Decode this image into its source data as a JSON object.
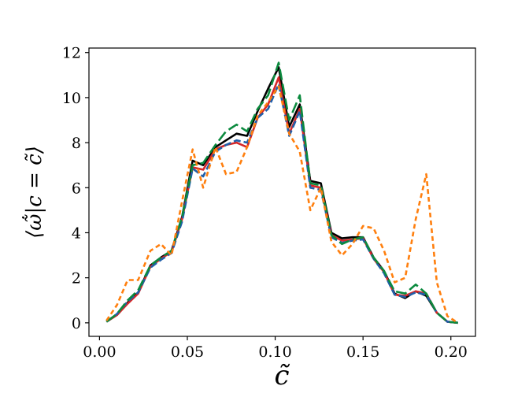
{
  "chart_data": {
    "type": "line",
    "xlabel": "c̃",
    "ylabel": "⟨ω̃̇|c = c̃⟩",
    "xlim": [
      -0.006,
      0.214
    ],
    "ylim": [
      -0.6,
      12.2
    ],
    "xticks": [
      0.0,
      0.05,
      0.1,
      0.15,
      0.2
    ],
    "xtick_labels": [
      "0.00",
      "0.05",
      "0.10",
      "0.15",
      "0.20"
    ],
    "yticks": [
      0,
      2,
      4,
      6,
      8,
      10,
      12
    ],
    "ytick_labels": [
      "0",
      "2",
      "4",
      "6",
      "8",
      "10",
      "12"
    ],
    "grid": false,
    "legend": "none",
    "series": [
      {
        "color": "#000000",
        "dash": "solid",
        "x": [
          0.004,
          0.01,
          0.016,
          0.022,
          0.029,
          0.035,
          0.041,
          0.047,
          0.053,
          0.059,
          0.066,
          0.072,
          0.078,
          0.084,
          0.09,
          0.096,
          0.102,
          0.108,
          0.114,
          0.12,
          0.126,
          0.132,
          0.138,
          0.144,
          0.15,
          0.156,
          0.162,
          0.168,
          0.174,
          0.18,
          0.186,
          0.192,
          0.198,
          0.204
        ],
        "y": [
          0.05,
          0.35,
          0.9,
          1.35,
          2.55,
          2.9,
          3.2,
          4.7,
          7.2,
          7.0,
          7.8,
          8.1,
          8.4,
          8.3,
          9.4,
          10.4,
          11.35,
          8.7,
          9.7,
          6.3,
          6.2,
          4.0,
          3.75,
          3.8,
          3.8,
          2.9,
          2.3,
          1.3,
          1.1,
          1.4,
          1.2,
          0.45,
          0.05,
          0.0
        ]
      },
      {
        "color": "#d62728",
        "dash": "solid",
        "x": [
          0.004,
          0.01,
          0.016,
          0.022,
          0.029,
          0.035,
          0.041,
          0.047,
          0.053,
          0.059,
          0.066,
          0.072,
          0.078,
          0.084,
          0.09,
          0.096,
          0.102,
          0.108,
          0.114,
          0.12,
          0.126,
          0.132,
          0.138,
          0.144,
          0.15,
          0.156,
          0.162,
          0.168,
          0.174,
          0.18,
          0.186,
          0.192,
          0.198,
          0.204
        ],
        "y": [
          0.05,
          0.35,
          0.85,
          1.3,
          2.5,
          2.85,
          3.15,
          4.6,
          6.9,
          6.8,
          7.7,
          7.9,
          8.0,
          7.8,
          9.1,
          9.7,
          10.9,
          8.4,
          9.5,
          6.1,
          6.0,
          3.9,
          3.65,
          3.7,
          3.75,
          2.85,
          2.25,
          1.25,
          1.2,
          1.4,
          1.3,
          0.45,
          0.05,
          0.0
        ]
      },
      {
        "color": "#1f5faa",
        "dash": "dash",
        "x": [
          0.004,
          0.01,
          0.016,
          0.022,
          0.029,
          0.035,
          0.041,
          0.047,
          0.053,
          0.059,
          0.066,
          0.072,
          0.078,
          0.084,
          0.09,
          0.096,
          0.102,
          0.108,
          0.114,
          0.12,
          0.126,
          0.132,
          0.138,
          0.144,
          0.15,
          0.156,
          0.162,
          0.168,
          0.174,
          0.18,
          0.186,
          0.192,
          0.198,
          0.204
        ],
        "y": [
          0.05,
          0.4,
          0.95,
          1.35,
          2.45,
          2.8,
          3.1,
          4.5,
          6.85,
          6.5,
          7.6,
          7.9,
          8.1,
          8.0,
          9.1,
          9.5,
          10.6,
          8.3,
          9.4,
          6.0,
          5.9,
          3.8,
          3.55,
          3.65,
          3.7,
          2.85,
          2.2,
          1.25,
          1.15,
          1.35,
          1.25,
          0.45,
          0.05,
          0.0
        ]
      },
      {
        "color": "#0b8a3e",
        "dash": "longdash",
        "x": [
          0.004,
          0.01,
          0.016,
          0.022,
          0.029,
          0.035,
          0.041,
          0.047,
          0.053,
          0.059,
          0.066,
          0.072,
          0.078,
          0.084,
          0.09,
          0.096,
          0.102,
          0.108,
          0.114,
          0.12,
          0.126,
          0.132,
          0.138,
          0.144,
          0.15,
          0.156,
          0.162,
          0.168,
          0.174,
          0.18,
          0.186,
          0.192,
          0.198,
          0.204
        ],
        "y": [
          0.05,
          0.4,
          1.0,
          1.45,
          2.55,
          2.9,
          3.2,
          4.7,
          7.0,
          7.1,
          7.9,
          8.5,
          8.8,
          8.5,
          9.5,
          10.1,
          11.55,
          9.0,
          10.1,
          6.2,
          6.1,
          3.9,
          3.5,
          3.7,
          3.8,
          2.9,
          2.3,
          1.4,
          1.3,
          1.7,
          1.3,
          0.45,
          0.05,
          0.0
        ]
      },
      {
        "color": "#ff7f0e",
        "dash": "shortdash",
        "x": [
          0.004,
          0.01,
          0.016,
          0.022,
          0.029,
          0.035,
          0.041,
          0.047,
          0.053,
          0.059,
          0.066,
          0.072,
          0.078,
          0.084,
          0.09,
          0.096,
          0.102,
          0.108,
          0.114,
          0.12,
          0.126,
          0.132,
          0.138,
          0.144,
          0.15,
          0.156,
          0.162,
          0.168,
          0.174,
          0.18,
          0.186,
          0.192,
          0.198,
          0.204
        ],
        "y": [
          0.1,
          0.8,
          1.9,
          1.9,
          3.2,
          3.5,
          3.0,
          5.4,
          7.7,
          6.0,
          7.8,
          6.6,
          6.7,
          7.8,
          9.2,
          9.8,
          10.5,
          8.4,
          7.6,
          5.0,
          6.0,
          3.6,
          3.0,
          3.5,
          4.3,
          4.2,
          3.2,
          1.8,
          2.0,
          4.6,
          6.6,
          1.8,
          0.3,
          0.0
        ]
      }
    ]
  }
}
